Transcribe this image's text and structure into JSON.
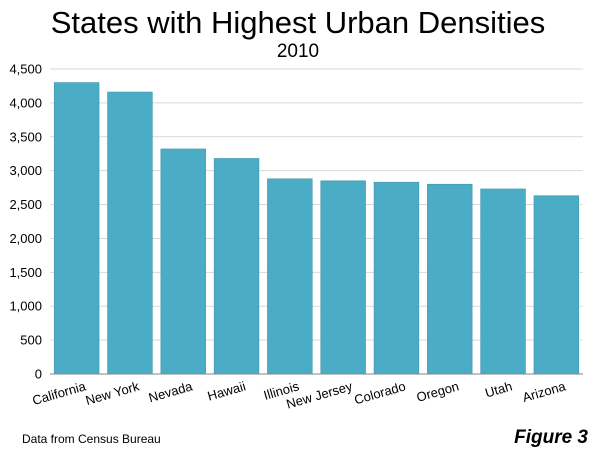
{
  "chart_data": {
    "type": "bar",
    "title": "States with Highest Urban Densities",
    "subtitle": "2010",
    "categories": [
      "California",
      "New York",
      "Nevada",
      "Hawaii",
      "Illinois",
      "New Jersey",
      "Colorado",
      "Oregon",
      "Utah",
      "Arizona"
    ],
    "values": [
      4300,
      4160,
      3320,
      3180,
      2880,
      2850,
      2830,
      2800,
      2730,
      2630
    ],
    "ylim": [
      0,
      4500
    ],
    "yticks": [
      0,
      500,
      1000,
      1500,
      2000,
      2500,
      3000,
      3500,
      4000,
      4500
    ],
    "ytick_labels": [
      "0",
      "500",
      "1,000",
      "1,500",
      "2,000",
      "2,500",
      "3,000",
      "3,500",
      "4,000",
      "4,500"
    ],
    "xlabel": "",
    "ylabel": "",
    "grid": true,
    "bar_color": "#4bacc6"
  },
  "footer": {
    "source": "Data from Census Bureau",
    "figure_label": "Figure 3"
  }
}
